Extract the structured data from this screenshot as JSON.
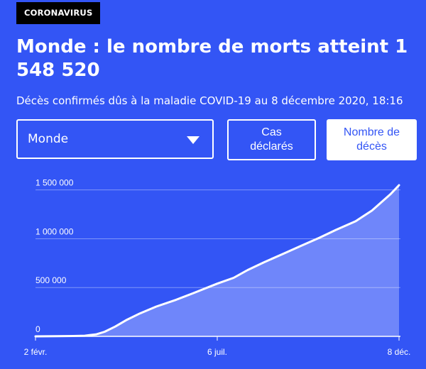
{
  "header": {
    "tag": "CORONAVIRUS",
    "title": "Monde : le nombre de morts atteint 1 548 520",
    "subtitle": "Décès confirmés dûs à la maladie COVID-19 au 8 décembre 2020, 18:16"
  },
  "controls": {
    "select_value": "Monde",
    "button_cases": "Cas\ndéclarés",
    "button_deaths": "Nombre de\ndécès",
    "active_button": "deaths"
  },
  "colors": {
    "background": "#3355f5",
    "line": "#ffffff",
    "area_fill": "#6f86fa"
  },
  "chart_data": {
    "type": "area",
    "title": "",
    "xlabel": "",
    "ylabel": "",
    "ylim": [
      0,
      1548520
    ],
    "y_ticks": [
      0,
      500000,
      1000000,
      1500000
    ],
    "y_tick_labels": [
      "0",
      "500 000",
      "1 000 000",
      "1 500 000"
    ],
    "x_tick_labels": [
      "2 févr.",
      "6 juil.",
      "8 déc."
    ],
    "x_tick_dates": [
      "2020-02-02",
      "2020-07-06",
      "2020-12-08"
    ],
    "grid": true,
    "series": [
      {
        "x": [
          "2020-02-02",
          "2020-02-20",
          "2020-03-05",
          "2020-03-15",
          "2020-03-25",
          "2020-04-01",
          "2020-04-10",
          "2020-04-20",
          "2020-05-01",
          "2020-05-15",
          "2020-06-01",
          "2020-06-15",
          "2020-07-06",
          "2020-07-20",
          "2020-08-01",
          "2020-08-15",
          "2020-09-01",
          "2020-09-15",
          "2020-10-01",
          "2020-10-15",
          "2020-11-01",
          "2020-11-15",
          "2020-12-01",
          "2020-12-08"
        ],
        "values": [
          360,
          2100,
          3400,
          6500,
          21000,
          47000,
          100000,
          170000,
          235000,
          305000,
          375000,
          440000,
          540000,
          600000,
          680000,
          760000,
          850000,
          925000,
          1010000,
          1090000,
          1180000,
          1290000,
          1460000,
          1548520
        ]
      }
    ]
  }
}
